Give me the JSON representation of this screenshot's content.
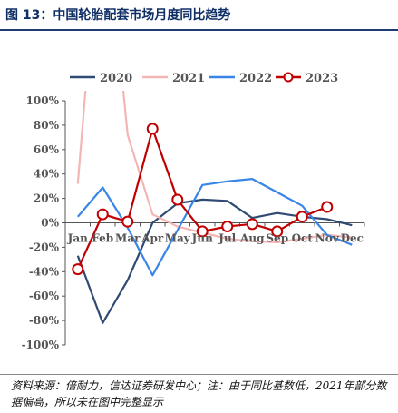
{
  "figure_title": "图 13：中国轮胎配套市场月度同比趋势",
  "source_note": "资料来源：倍耐力，信达证券研发中心；注：由于同比基数低，2021年部分数据偏高，所以未在图中完整显示",
  "chart_data": {
    "type": "line",
    "title": "",
    "xlabel": "",
    "ylabel": "",
    "ylim": [
      -100,
      100
    ],
    "y_ticks": [
      "100%",
      "80%",
      "60%",
      "40%",
      "20%",
      "0%",
      "-20%",
      "-40%",
      "-60%",
      "-80%",
      "-100%"
    ],
    "y_tick_values": [
      100,
      80,
      60,
      40,
      20,
      0,
      -20,
      -40,
      -60,
      -80,
      -100
    ],
    "categories": [
      "Jan",
      "Feb",
      "Mar",
      "Apr",
      "May",
      "Jun",
      "Jul",
      "Aug",
      "Sep",
      "Oct",
      "Nov",
      "Dec"
    ],
    "legend_position": "top",
    "grid": false,
    "series": [
      {
        "name": "2020",
        "color": "#2f4a73",
        "marker": "none",
        "values": [
          -27,
          -82,
          -47,
          0,
          16,
          19,
          18,
          4,
          8,
          5,
          3,
          -2
        ]
      },
      {
        "name": "2021",
        "color": "#f4b6b4",
        "marker": "none",
        "values": [
          32,
          280,
          72,
          7,
          -3,
          -8,
          -13,
          -15,
          -16,
          -13,
          -10,
          -12
        ]
      },
      {
        "name": "2022",
        "color": "#3a86e8",
        "marker": "none",
        "values": [
          5,
          29,
          -4,
          -43,
          -6,
          31,
          34,
          36,
          25,
          14,
          -10,
          -18
        ]
      },
      {
        "name": "2023",
        "color": "#c00000",
        "marker": "circle",
        "values": [
          -38,
          7,
          1,
          77,
          19,
          -7,
          -3,
          -1,
          -7,
          5,
          13,
          null
        ]
      }
    ]
  }
}
